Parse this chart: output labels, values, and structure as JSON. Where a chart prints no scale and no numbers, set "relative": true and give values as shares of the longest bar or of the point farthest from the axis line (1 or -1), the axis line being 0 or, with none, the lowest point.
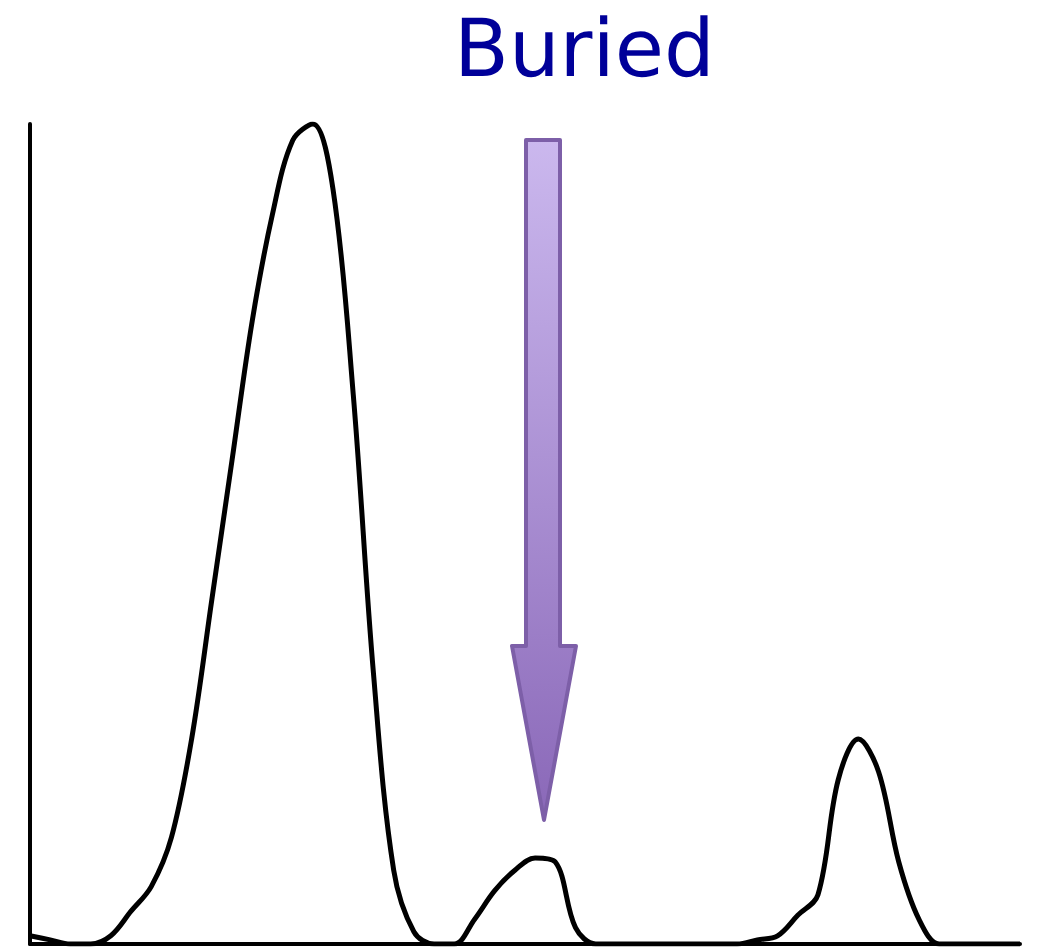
{
  "chart_data": {
    "type": "line",
    "title": "Buried",
    "relative": true,
    "tick_labels": false,
    "marker": "none",
    "line_style": "solid",
    "categories": [
      null,
      null,
      null,
      null,
      null,
      null,
      null,
      null,
      null,
      null,
      null,
      null,
      null,
      null,
      null,
      null,
      null,
      null,
      null,
      null,
      null,
      null,
      null,
      null,
      null,
      null,
      null,
      null,
      null,
      null,
      null,
      null,
      null,
      null,
      null,
      null,
      null,
      null,
      null,
      null,
      null,
      null,
      null,
      null,
      null,
      null,
      null,
      null,
      null,
      null
    ],
    "series": [
      {
        "color": "#000000",
        "values": [
          0.01,
          0.005,
          0,
          0,
          0.01,
          0.04,
          0.07,
          0.13,
          0.25,
          0.42,
          0.59,
          0.76,
          0.89,
          0.98,
          1,
          0.92,
          0.67,
          0.33,
          0.09,
          0.015,
          0,
          0,
          0.03,
          0.065,
          0.09,
          0.105,
          0.1,
          0.02,
          0,
          0,
          0,
          0,
          0,
          0,
          0,
          0,
          0.005,
          0.01,
          0.035,
          0.06,
          0.2,
          0.25,
          0.21,
          0.1,
          0.03,
          0,
          0,
          0,
          0,
          0
        ]
      }
    ]
  }
}
